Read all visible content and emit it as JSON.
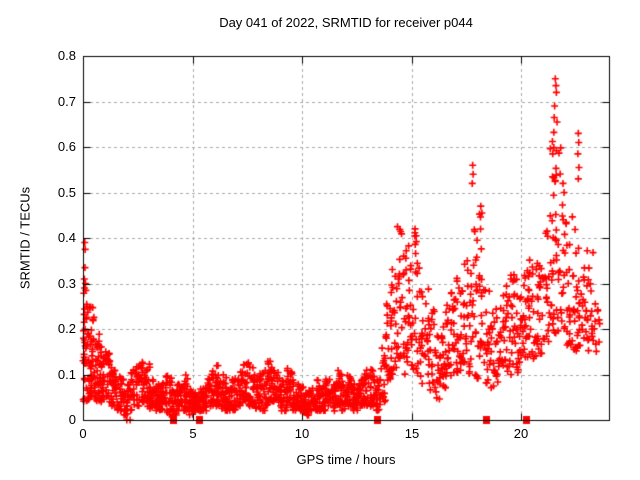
{
  "colors": {
    "marker": "#ff0000",
    "grid": "#aaaaaa",
    "axis": "#000000",
    "text": "#000000",
    "background": "#ffffff"
  },
  "chart_data": {
    "type": "scatter",
    "title": "Day 041 of 2022, SRMTID for receiver p044",
    "xlabel": "GPS time / hours",
    "ylabel": "SRMTID / TECUs",
    "xlim": [
      0,
      24
    ],
    "ylim": [
      0,
      0.8
    ],
    "x_ticks": [
      "0",
      "5",
      "10",
      "15",
      "20"
    ],
    "x_tick_values": [
      0,
      5,
      10,
      15,
      20
    ],
    "y_ticks": [
      "0",
      "0.1",
      "0.2",
      "0.3",
      "0.4",
      "0.5",
      "0.6",
      "0.7",
      "0.8"
    ],
    "y_tick_values": [
      0,
      0.1,
      0.2,
      0.3,
      0.4,
      0.5,
      0.6,
      0.7,
      0.8
    ],
    "grid": true,
    "legend": "none",
    "marker": "plus",
    "description": "Dense red + scatter: high scatter 0-1h (to ~0.4), quiet band ~0.02-0.1 from 2-13h, rising after 13.5h with peaks ~0.4-0.47 near 15-18h, and a strong burst ~21.5-22h reaching 0.75; filled red squares sit on the x-axis at flagged epochs.",
    "bands": [
      [
        0.0,
        0.3,
        0.04,
        0.28,
        45
      ],
      [
        0.3,
        0.55,
        0.05,
        0.25,
        35
      ],
      [
        0.55,
        0.8,
        0.04,
        0.19,
        30
      ],
      [
        0.8,
        1.05,
        0.04,
        0.17,
        28
      ],
      [
        1.05,
        1.3,
        0.03,
        0.15,
        26
      ],
      [
        1.3,
        1.55,
        0.03,
        0.12,
        24
      ],
      [
        1.55,
        1.8,
        0.02,
        0.1,
        22
      ],
      [
        1.8,
        2.05,
        0.01,
        0.09,
        20
      ],
      [
        2.05,
        2.3,
        0.02,
        0.11,
        20
      ],
      [
        2.3,
        2.55,
        0.03,
        0.12,
        20
      ],
      [
        2.55,
        2.8,
        0.04,
        0.14,
        22
      ],
      [
        2.8,
        3.05,
        0.03,
        0.13,
        22
      ],
      [
        3.05,
        3.3,
        0.02,
        0.1,
        22
      ],
      [
        3.3,
        3.55,
        0.02,
        0.08,
        22
      ],
      [
        3.55,
        3.8,
        0.02,
        0.08,
        22
      ],
      [
        3.8,
        4.05,
        0.01,
        0.1,
        22
      ],
      [
        4.05,
        4.3,
        0.01,
        0.07,
        22
      ],
      [
        4.3,
        4.55,
        0.02,
        0.08,
        22
      ],
      [
        4.55,
        4.8,
        0.02,
        0.1,
        22
      ],
      [
        4.8,
        5.05,
        0.01,
        0.07,
        22
      ],
      [
        5.05,
        5.3,
        0.02,
        0.06,
        22
      ],
      [
        5.3,
        5.55,
        0.02,
        0.07,
        22
      ],
      [
        5.55,
        5.8,
        0.02,
        0.09,
        22
      ],
      [
        5.8,
        6.05,
        0.03,
        0.11,
        22
      ],
      [
        6.05,
        6.3,
        0.03,
        0.13,
        22
      ],
      [
        6.3,
        6.55,
        0.02,
        0.1,
        22
      ],
      [
        6.55,
        6.8,
        0.02,
        0.08,
        22
      ],
      [
        6.8,
        7.05,
        0.02,
        0.09,
        22
      ],
      [
        7.05,
        7.3,
        0.03,
        0.11,
        22
      ],
      [
        7.3,
        7.55,
        0.04,
        0.13,
        22
      ],
      [
        7.55,
        7.8,
        0.03,
        0.12,
        22
      ],
      [
        7.8,
        8.05,
        0.02,
        0.1,
        22
      ],
      [
        8.05,
        8.3,
        0.02,
        0.11,
        22
      ],
      [
        8.3,
        8.55,
        0.03,
        0.13,
        22
      ],
      [
        8.55,
        8.8,
        0.04,
        0.13,
        22
      ],
      [
        8.8,
        9.05,
        0.03,
        0.11,
        22
      ],
      [
        9.05,
        9.3,
        0.02,
        0.09,
        22
      ],
      [
        9.3,
        9.55,
        0.03,
        0.12,
        22
      ],
      [
        9.55,
        9.8,
        0.02,
        0.09,
        22
      ],
      [
        9.8,
        10.05,
        0.02,
        0.08,
        22
      ],
      [
        10.05,
        10.3,
        0.01,
        0.06,
        22
      ],
      [
        10.3,
        10.55,
        0.02,
        0.07,
        22
      ],
      [
        10.55,
        10.8,
        0.02,
        0.09,
        22
      ],
      [
        10.8,
        11.05,
        0.02,
        0.08,
        22
      ],
      [
        11.05,
        11.3,
        0.03,
        0.09,
        22
      ],
      [
        11.3,
        11.55,
        0.02,
        0.08,
        22
      ],
      [
        11.55,
        11.8,
        0.03,
        0.11,
        22
      ],
      [
        11.8,
        12.05,
        0.02,
        0.09,
        22
      ],
      [
        12.05,
        12.3,
        0.03,
        0.1,
        22
      ],
      [
        12.3,
        12.55,
        0.02,
        0.08,
        22
      ],
      [
        12.55,
        12.8,
        0.03,
        0.09,
        22
      ],
      [
        12.8,
        13.05,
        0.03,
        0.11,
        22
      ],
      [
        13.05,
        13.3,
        0.03,
        0.12,
        20
      ],
      [
        13.3,
        13.55,
        0.02,
        0.1,
        20
      ],
      [
        13.55,
        13.8,
        0.04,
        0.16,
        20
      ],
      [
        13.8,
        14.05,
        0.08,
        0.26,
        20
      ],
      [
        14.05,
        14.3,
        0.1,
        0.34,
        22
      ],
      [
        14.3,
        14.55,
        0.12,
        0.42,
        20
      ],
      [
        14.55,
        14.8,
        0.1,
        0.38,
        18
      ],
      [
        14.8,
        15.05,
        0.12,
        0.39,
        20
      ],
      [
        15.05,
        15.3,
        0.1,
        0.43,
        18
      ],
      [
        15.3,
        15.55,
        0.08,
        0.35,
        16
      ],
      [
        15.55,
        15.8,
        0.1,
        0.3,
        16
      ],
      [
        15.8,
        16.05,
        0.06,
        0.25,
        16
      ],
      [
        16.05,
        16.3,
        0.04,
        0.2,
        18
      ],
      [
        16.3,
        16.55,
        0.06,
        0.22,
        18
      ],
      [
        16.55,
        16.8,
        0.08,
        0.26,
        18
      ],
      [
        16.8,
        17.05,
        0.1,
        0.3,
        18
      ],
      [
        17.05,
        17.3,
        0.1,
        0.34,
        18
      ],
      [
        17.3,
        17.55,
        0.12,
        0.37,
        18
      ],
      [
        17.55,
        17.8,
        0.1,
        0.34,
        18
      ],
      [
        17.8,
        18.05,
        0.08,
        0.43,
        18
      ],
      [
        18.05,
        18.3,
        0.1,
        0.47,
        18
      ],
      [
        18.3,
        18.55,
        0.08,
        0.3,
        16
      ],
      [
        18.55,
        18.8,
        0.07,
        0.24,
        16
      ],
      [
        18.8,
        19.05,
        0.08,
        0.26,
        16
      ],
      [
        19.05,
        19.3,
        0.1,
        0.3,
        16
      ],
      [
        19.3,
        19.55,
        0.1,
        0.32,
        18
      ],
      [
        19.55,
        19.8,
        0.12,
        0.34,
        18
      ],
      [
        19.8,
        20.05,
        0.1,
        0.3,
        18
      ],
      [
        20.05,
        20.3,
        0.12,
        0.34,
        18
      ],
      [
        20.3,
        20.55,
        0.14,
        0.37,
        18
      ],
      [
        20.55,
        20.8,
        0.12,
        0.36,
        18
      ],
      [
        20.8,
        21.05,
        0.14,
        0.34,
        16
      ],
      [
        21.05,
        21.3,
        0.16,
        0.42,
        16
      ],
      [
        21.3,
        21.55,
        0.17,
        0.64,
        26
      ],
      [
        21.55,
        21.8,
        0.17,
        0.6,
        22
      ],
      [
        21.8,
        22.05,
        0.15,
        0.48,
        16
      ],
      [
        22.05,
        22.3,
        0.14,
        0.4,
        16
      ],
      [
        22.3,
        22.55,
        0.15,
        0.45,
        16
      ],
      [
        22.55,
        22.8,
        0.15,
        0.42,
        18
      ],
      [
        22.8,
        23.05,
        0.16,
        0.4,
        16
      ],
      [
        23.05,
        23.3,
        0.15,
        0.38,
        14
      ],
      [
        23.3,
        23.6,
        0.15,
        0.3,
        10
      ]
    ],
    "extreme_points": [
      [
        0.08,
        0.39
      ],
      [
        0.1,
        0.375
      ],
      [
        0.09,
        0.335
      ],
      [
        0.06,
        0.31
      ],
      [
        0.11,
        0.3
      ],
      [
        0.07,
        0.29
      ],
      [
        0.13,
        0.285
      ],
      [
        14.35,
        0.425
      ],
      [
        15.15,
        0.42
      ],
      [
        15.2,
        0.405
      ],
      [
        17.78,
        0.56
      ],
      [
        17.8,
        0.54
      ],
      [
        17.76,
        0.52
      ],
      [
        18.15,
        0.47
      ],
      [
        18.2,
        0.455
      ],
      [
        21.55,
        0.75
      ],
      [
        21.58,
        0.735
      ],
      [
        21.6,
        0.72
      ],
      [
        21.52,
        0.69
      ],
      [
        21.5,
        0.665
      ],
      [
        21.63,
        0.655
      ],
      [
        21.9,
        0.52
      ],
      [
        21.95,
        0.5
      ],
      [
        22.6,
        0.63
      ],
      [
        22.62,
        0.61
      ],
      [
        22.58,
        0.585
      ],
      [
        22.63,
        0.555
      ],
      [
        22.6,
        0.53
      ]
    ],
    "axis_square_marker_hours": [
      4.1,
      5.3,
      13.4,
      18.4,
      20.22
    ],
    "axis_plus_marker_hours": [
      2.0,
      2.15
    ]
  }
}
